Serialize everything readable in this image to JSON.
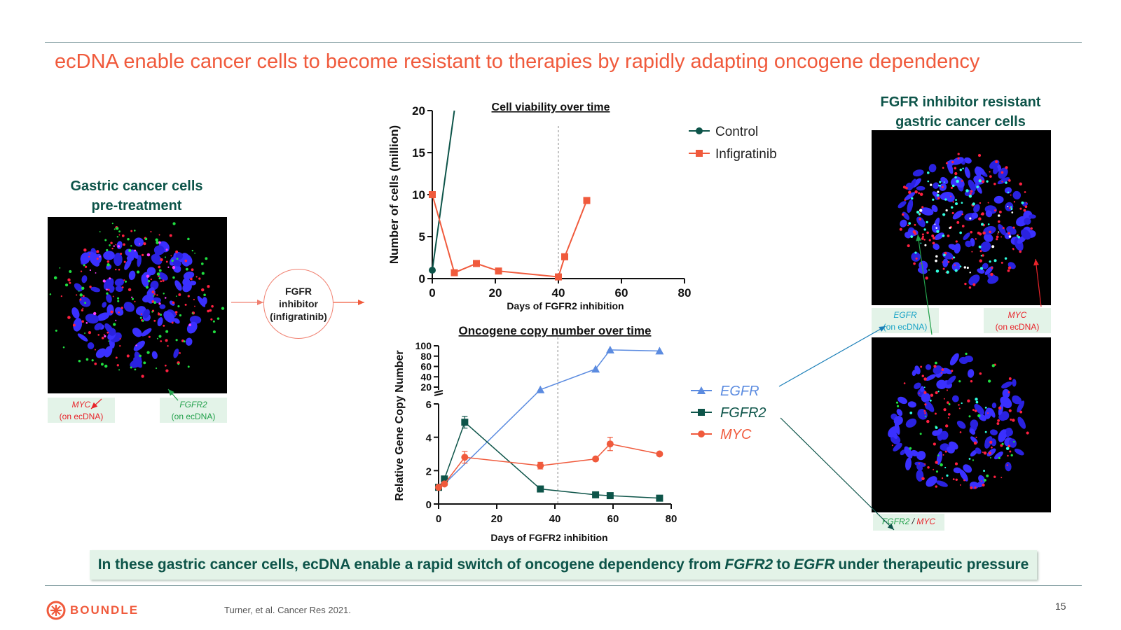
{
  "title": "ecDNA enable cancer cells to become resistant to therapies by rapidly adapting oncogene dependency",
  "left_panel": {
    "title_line1": "Gastric cancer cells",
    "title_line2": "pre-treatment",
    "labels": [
      {
        "gene": "MYC",
        "note": "(on ecDNA)",
        "color": "#e8232a"
      },
      {
        "gene": "FGFR2",
        "note": "(on ecDNA)",
        "color": "#22a04b"
      }
    ]
  },
  "treatment": {
    "line1": "FGFR",
    "line2": "inhibitor",
    "line3": "(infigratinib)"
  },
  "right_panel": {
    "title_line1": "FGFR inhibitor resistant",
    "title_line2": "gastric cancer cells",
    "top_labels": [
      {
        "gene": "EGFR",
        "note": "(on ecDNA)",
        "color": "#19a3c6"
      },
      {
        "gene": "MYC",
        "note": "(on ecDNA)",
        "color": "#e8232a"
      }
    ],
    "bottom_label": {
      "gene1": "FGFR2",
      "sep": " / ",
      "gene2": "MYC",
      "color1": "#22a04b",
      "color2": "#e8232a"
    }
  },
  "chart_data": [
    {
      "type": "line",
      "title": "Cell viability over time",
      "xlabel": "Days of FGFR2 inhibition",
      "ylabel": "Number of cells (million)",
      "xlim": [
        0,
        80
      ],
      "ylim": [
        0,
        20
      ],
      "xticks": [
        0,
        20,
        40,
        60,
        80
      ],
      "yticks": [
        0,
        5,
        10,
        15,
        20
      ],
      "vline": 40,
      "legend_position": "right",
      "series": [
        {
          "name": "Control",
          "color": "#0d5449",
          "marker": "circle",
          "points": [
            [
              0,
              1
            ],
            [
              7,
              20
            ]
          ]
        },
        {
          "name": "Infigratinib",
          "color": "#f05a3c",
          "marker": "square",
          "points": [
            [
              0,
              10
            ],
            [
              7,
              0.7
            ],
            [
              14,
              1.8
            ],
            [
              21,
              0.9
            ],
            [
              40,
              0.2
            ],
            [
              42,
              2.6
            ],
            [
              49,
              9.3
            ]
          ]
        }
      ]
    },
    {
      "type": "line",
      "title": "Oncogene copy number over time",
      "xlabel": "Days of FGFR2 inhibition",
      "ylabel": "Relative Gene Copy Number",
      "xlim": [
        0,
        80
      ],
      "yaxis_broken": true,
      "ylim_lower": [
        0,
        6
      ],
      "ylim_upper": [
        20,
        100
      ],
      "yticks_lower": [
        0,
        2,
        4,
        6
      ],
      "yticks_upper": [
        20,
        40,
        60,
        80,
        100
      ],
      "xticks": [
        0,
        20,
        40,
        60,
        80
      ],
      "vline": 41,
      "legend_position": "right",
      "series": [
        {
          "name": "EGFR",
          "color": "#5b8be0",
          "marker": "triangle",
          "points": [
            [
              0,
              1
            ],
            [
              2,
              1.2
            ],
            [
              35,
              15
            ],
            [
              54,
              55
            ],
            [
              59,
              92
            ],
            [
              76,
              90
            ]
          ],
          "hidden_markers": [
            0,
            1
          ]
        },
        {
          "name": "FGFR2",
          "color": "#0d5449",
          "marker": "square",
          "points": [
            [
              0,
              1
            ],
            [
              2,
              1.5
            ],
            [
              9,
              4.9
            ],
            [
              35,
              0.9
            ],
            [
              54,
              0.55
            ],
            [
              59,
              0.5
            ],
            [
              76,
              0.35
            ]
          ],
          "errors": [
            0,
            0,
            0.35,
            0,
            0,
            0,
            0
          ]
        },
        {
          "name": "MYC",
          "color": "#f05a3c",
          "marker": "circle",
          "points": [
            [
              0,
              1
            ],
            [
              2,
              1.2
            ],
            [
              9,
              2.8
            ],
            [
              35,
              2.3
            ],
            [
              54,
              2.7
            ],
            [
              59,
              3.6
            ],
            [
              76,
              3.0
            ]
          ],
          "errors": [
            0,
            0,
            0.35,
            0.2,
            0,
            0.4,
            0
          ]
        }
      ]
    }
  ],
  "summary": {
    "part1": "In these gastric cancer cells, ecDNA enable a rapid switch of oncogene dependency from",
    "gene1": "FGFR2",
    "part2": "to",
    "gene2": "EGFR",
    "part3": "under therapeutic pressure"
  },
  "footer": {
    "logo_text": "BOUNDLESS",
    "citation": "Turner, et al. Cancer Res 2021.",
    "page_number": "15"
  }
}
